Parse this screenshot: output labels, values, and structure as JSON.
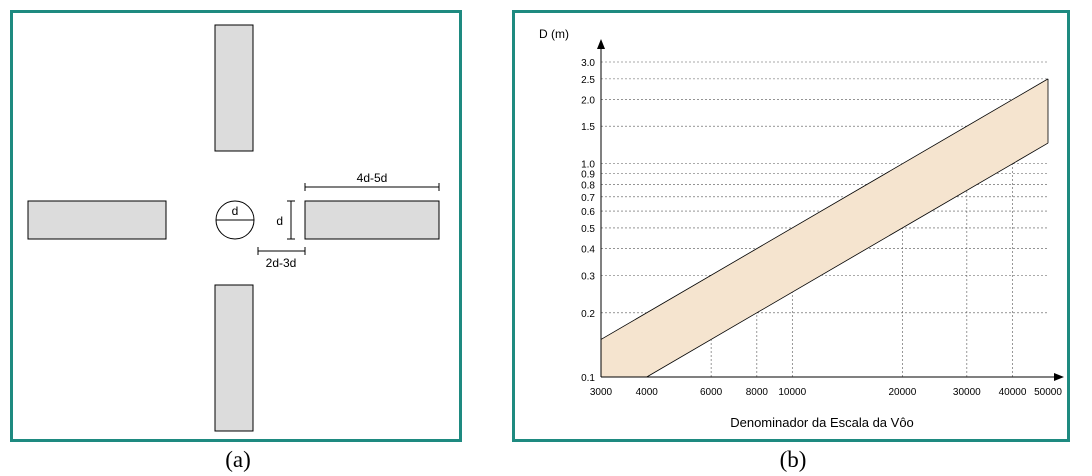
{
  "captions": {
    "a": "(a)",
    "b": "(b)"
  },
  "diagram_a": {
    "diameter_label": "d",
    "arm_length_label": "4d-5d",
    "arm_width_label": "d",
    "gap_label": "2d-3d",
    "colors": {
      "arm_fill": "#dcdcdc",
      "frame": "#1e8a80"
    }
  },
  "chart_data": {
    "type": "area",
    "ylabel": "D (m)",
    "xlabel": "Denominador da Escala da Vôo",
    "x_scale": "log",
    "y_scale": "log",
    "xlim": [
      3000,
      50000
    ],
    "ylim": [
      0.1,
      3.0
    ],
    "x_ticks": [
      3000,
      4000,
      6000,
      8000,
      10000,
      20000,
      30000,
      40000,
      50000
    ],
    "x_tick_labels": [
      "3000",
      "4000",
      "6000",
      "8000",
      "10000",
      "20000",
      "30000",
      "40000",
      "50000"
    ],
    "y_ticks": [
      0.1,
      0.2,
      0.3,
      0.4,
      0.5,
      0.6,
      0.7,
      0.8,
      0.9,
      1.0,
      1.5,
      2.0,
      2.5,
      3.0
    ],
    "y_tick_labels": [
      "0.1",
      "0.2",
      "0.3",
      "0.4",
      "0.5",
      "0.6",
      "0.7",
      "0.8",
      "0.9",
      "1.0",
      "1.5",
      "2.0",
      "2.5",
      "3.0"
    ],
    "grid": true,
    "band_fill": "#f5e4cf",
    "series": [
      {
        "x": [
          3000,
          50000
        ],
        "values": [
          0.15,
          2.5
        ]
      },
      {
        "x": [
          4000,
          50000
        ],
        "values": [
          0.1,
          1.25
        ]
      }
    ]
  }
}
